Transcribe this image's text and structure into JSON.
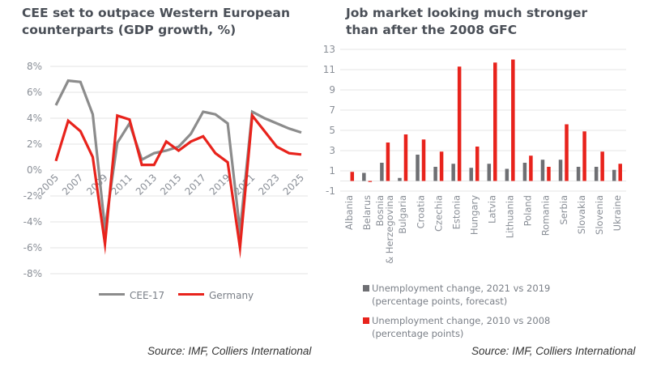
{
  "chart_data": [
    {
      "type": "line",
      "title": "CEE set to outpace Western European\ncounterparts (GDP growth, %)",
      "xlabel": "",
      "ylabel": "",
      "x": [
        2005,
        2006,
        2007,
        2008,
        2009,
        2010,
        2011,
        2012,
        2013,
        2014,
        2015,
        2016,
        2017,
        2018,
        2019,
        2020,
        2021,
        2022,
        2023,
        2024,
        2025
      ],
      "x_tick_labels": [
        "2005",
        "2007",
        "2009",
        "2011",
        "2013",
        "2015",
        "2017",
        "2019",
        "2021",
        "2023",
        "2025"
      ],
      "y_tick_labels": [
        "8%",
        "6%",
        "4%",
        "2%",
        "0%",
        "-2%",
        "-4%",
        "-6%",
        "-8%"
      ],
      "y_ticks": [
        8,
        6,
        4,
        2,
        0,
        -2,
        -4,
        -6,
        -8
      ],
      "ylim": [
        -8,
        8
      ],
      "grid": true,
      "legend_position": "bottom",
      "series": [
        {
          "name": "CEE-17",
          "color": "#8c8c8c",
          "values": [
            5.0,
            6.9,
            6.8,
            4.3,
            -4.5,
            2.1,
            3.6,
            0.8,
            1.3,
            1.5,
            1.8,
            2.8,
            4.5,
            4.3,
            3.6,
            -4.7,
            4.5,
            4.0,
            3.6,
            3.2,
            2.9
          ]
        },
        {
          "name": "Germany",
          "color": "#e8231c",
          "values": [
            0.7,
            3.8,
            3.0,
            1.0,
            -5.7,
            4.2,
            3.9,
            0.4,
            0.4,
            2.2,
            1.5,
            2.2,
            2.6,
            1.3,
            0.6,
            -6.0,
            4.2,
            3.0,
            1.8,
            1.3,
            1.2
          ]
        }
      ],
      "source": "Source: IMF, Colliers International"
    },
    {
      "type": "bar",
      "title": "Job market looking much stronger\nthan after the 2008 GFC",
      "xlabel": "",
      "ylabel": "",
      "categories": [
        "Albania",
        "Belarus",
        "Bosnia\n& Herzegovina",
        "Bulgaria",
        "Croatia",
        "Czechia",
        "Estonia",
        "Hungary",
        "Latvia",
        "Lithuania",
        "Poland",
        "Romania",
        "Serbia",
        "Slovakia",
        "Slovenia",
        "Ukraine"
      ],
      "y_tick_labels": [
        "13",
        "11",
        "9",
        "7",
        "5",
        "3",
        "1",
        "-1"
      ],
      "y_ticks": [
        13,
        11,
        9,
        7,
        5,
        3,
        1,
        -1
      ],
      "ylim": [
        -1,
        13
      ],
      "grid": true,
      "legend_position": "bottom-left",
      "series": [
        {
          "name": "Unemployment change, 2021 vs 2019\n(percentage points, forecast)",
          "color": "#6e6f73",
          "values": [
            0.0,
            0.8,
            1.8,
            0.3,
            2.6,
            1.4,
            1.7,
            1.3,
            1.7,
            1.2,
            1.8,
            2.1,
            2.1,
            1.4,
            1.4,
            1.1
          ]
        },
        {
          "name": "Unemployment change, 2010 vs 2008\n(percentage points)",
          "color": "#e8231c",
          "values": [
            0.9,
            -0.1,
            3.8,
            4.6,
            4.1,
            2.9,
            11.3,
            3.4,
            11.7,
            12.0,
            2.5,
            1.4,
            5.6,
            4.9,
            2.9,
            1.7
          ]
        }
      ],
      "source": "Source: IMF, Colliers International"
    }
  ],
  "left": {
    "title": "CEE set to outpace Western European\ncounterparts (GDP growth, %)",
    "legend": [
      "CEE-17",
      "Germany"
    ],
    "source": "Source: IMF, Colliers International"
  },
  "right": {
    "title": "Job market looking much stronger\nthan after the 2008 GFC",
    "legend": [
      {
        "line1": "Unemployment change, 2021 vs 2019",
        "line2": "(percentage points, forecast)"
      },
      {
        "line1": "Unemployment change, 2010 vs 2008",
        "line2": "(percentage points)"
      }
    ],
    "source": "Source: IMF, Colliers International"
  }
}
